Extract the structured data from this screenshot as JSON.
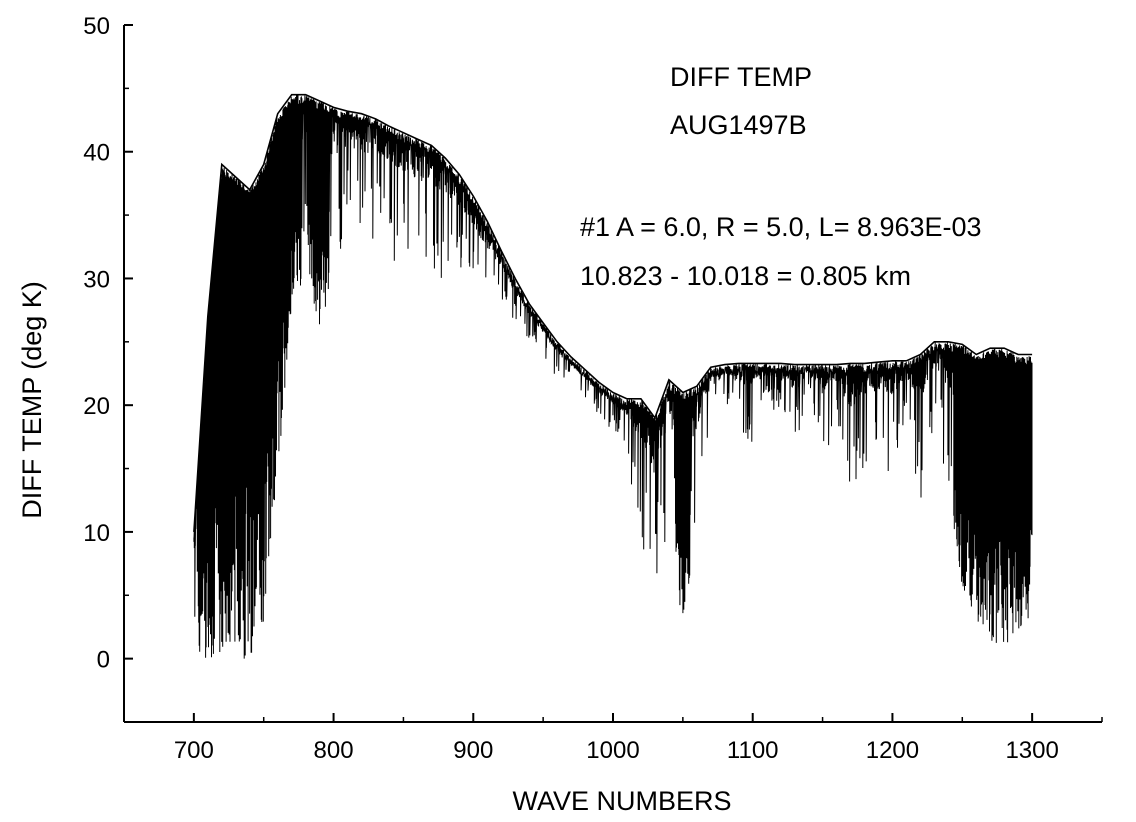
{
  "chart_data": {
    "type": "line",
    "title": "",
    "xlabel": "WAVE NUMBERS",
    "ylabel": "DIFF TEMP (deg K)",
    "xlim": [
      650,
      1350
    ],
    "ylim": [
      -5,
      50
    ],
    "x_ticks": [
      700,
      800,
      900,
      1000,
      1100,
      1200,
      1300
    ],
    "y_ticks": [
      0,
      10,
      20,
      30,
      40,
      50
    ],
    "grid": false,
    "legend": "none",
    "color": "#000000",
    "annotations": [
      "DIFF TEMP",
      "AUG1497B",
      "#1  A = 6.0,  R = 5.0,  L= 8.963E-03",
      "10.823 - 10.018 = 0.805 km"
    ],
    "series": [
      {
        "x": [
          700,
          710,
          720,
          730,
          740,
          750,
          760,
          770,
          780,
          790,
          800,
          810,
          820,
          830,
          840,
          850,
          860,
          870,
          880,
          890,
          900,
          910,
          920,
          930,
          940,
          950,
          960,
          970,
          980,
          990,
          1000,
          1010,
          1020,
          1030,
          1040,
          1050,
          1060,
          1070,
          1080,
          1090,
          1100,
          1110,
          1120,
          1130,
          1140,
          1150,
          1160,
          1170,
          1180,
          1190,
          1200,
          1210,
          1220,
          1230,
          1240,
          1250,
          1260,
          1270,
          1280,
          1290,
          1300
        ],
        "envelope_upper": [
          10,
          27,
          39,
          38,
          37,
          39,
          43,
          44.5,
          44.5,
          44,
          43.5,
          43.2,
          43,
          42.6,
          42,
          41.5,
          41,
          40.5,
          39.5,
          38.2,
          36.5,
          34.5,
          32.2,
          30,
          28,
          26.5,
          25,
          23.8,
          22.8,
          21.8,
          21,
          20.5,
          20.5,
          19,
          22,
          21,
          21.5,
          23,
          23.2,
          23.3,
          23.3,
          23.3,
          23.3,
          23.2,
          23.2,
          23.2,
          23.2,
          23.3,
          23.3,
          23.4,
          23.5,
          23.5,
          24,
          25,
          25,
          24.8,
          24,
          24.5,
          24.5,
          24,
          24
        ],
        "envelope_lower": [
          0,
          0,
          0,
          0,
          0,
          2,
          14,
          28,
          30,
          26,
          30,
          34,
          33,
          33,
          31,
          31,
          30,
          30,
          30,
          30,
          29,
          27,
          28,
          26,
          25,
          24,
          22,
          21.5,
          20.5,
          19,
          18,
          16,
          9,
          4,
          11,
          2,
          10,
          18,
          20,
          18,
          17,
          20,
          19,
          16,
          21,
          15,
          19,
          11,
          15,
          16,
          14,
          19,
          12,
          19,
          13,
          5,
          3,
          1,
          1,
          2,
          2
        ]
      }
    ]
  }
}
